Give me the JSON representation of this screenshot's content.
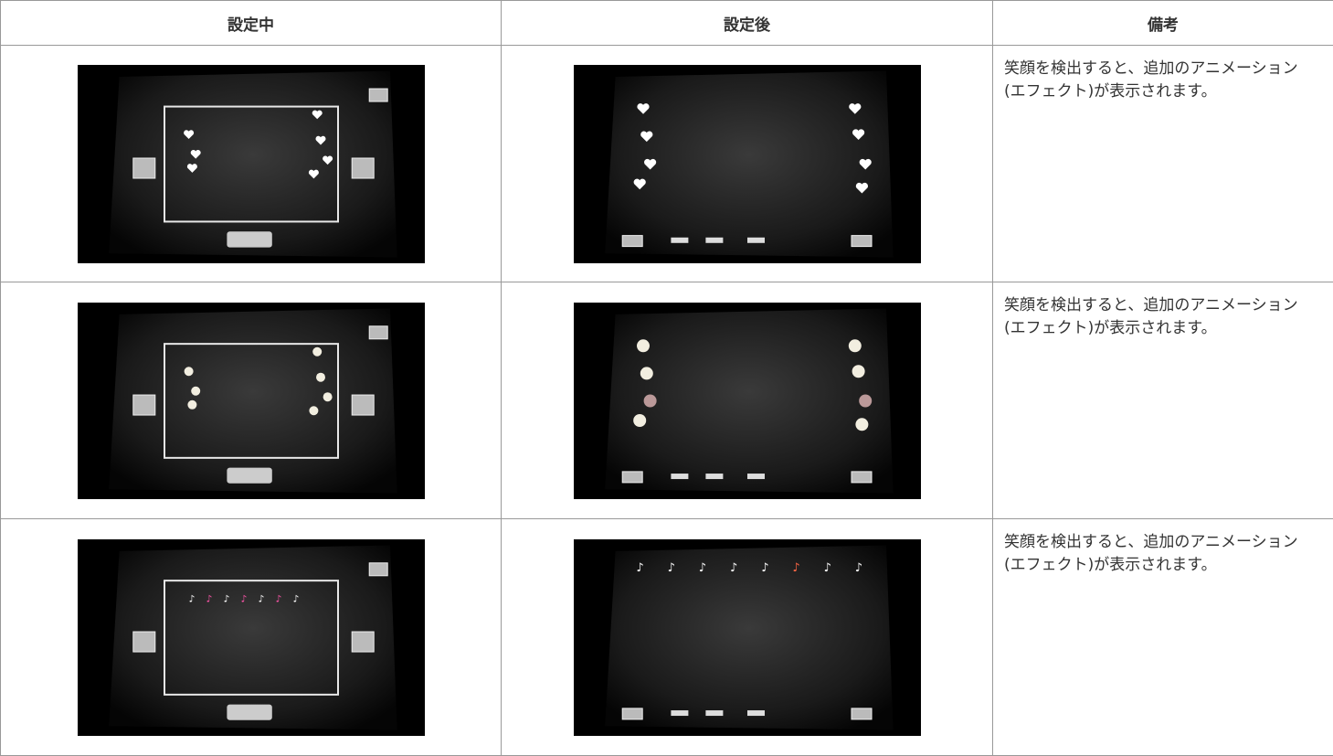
{
  "table": {
    "headers": [
      "設定中",
      "設定後",
      "備考"
    ],
    "rows": [
      [
        "笑顔を検出すると、追加のアニメーション(エフェクト)が表示されます。"
      ],
      [
        "笑顔を検出すると、追加のアニメーション(エフェクト)が表示されます。"
      ],
      [
        "笑顔を検出すると、追加のアニメーション(エフェクト)が表示されます。"
      ]
    ]
  }
}
